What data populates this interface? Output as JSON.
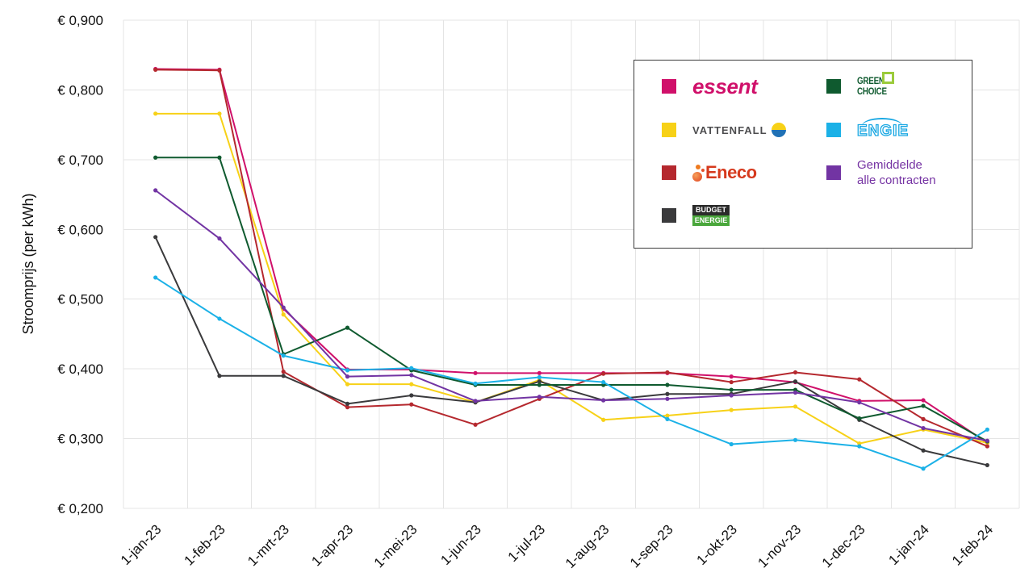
{
  "chart_data": {
    "type": "line",
    "ylabel": "Stroomprijs (per kWh)",
    "categories": [
      "1-jan-23",
      "1-feb-23",
      "1-mrt-23",
      "1-apr-23",
      "1-mei-23",
      "1-jun-23",
      "1-jul-23",
      "1-aug-23",
      "1-sep-23",
      "1-okt-23",
      "1-nov-23",
      "1-dec-23",
      "1-jan-24",
      "1-feb-24"
    ],
    "ylim": [
      0.2,
      0.9
    ],
    "yticks": [
      0.9,
      0.8,
      0.7,
      0.6,
      0.5,
      0.4,
      0.3,
      0.2
    ],
    "ytick_labels": [
      "€ 0,900",
      "€ 0,800",
      "€ 0,700",
      "€ 0,600",
      "€ 0,500",
      "€ 0,400",
      "€ 0,300",
      "€ 0,200"
    ],
    "grid": true,
    "legend_position": "top-right",
    "series": [
      {
        "name": "essent",
        "color": "#d0106a",
        "values": [
          0.83,
          0.829,
          0.486,
          0.399,
          0.399,
          0.394,
          0.394,
          0.394,
          0.394,
          0.389,
          0.381,
          0.354,
          0.355,
          0.294
        ]
      },
      {
        "name": "VATTENFALL",
        "color": "#f7d117",
        "values": [
          0.766,
          0.766,
          0.478,
          0.378,
          0.378,
          0.352,
          0.384,
          0.327,
          0.333,
          0.341,
          0.346,
          0.293,
          0.313,
          0.294
        ]
      },
      {
        "name": "Eneco",
        "color": "#b5282e",
        "values": [
          0.829,
          0.828,
          0.396,
          0.345,
          0.349,
          0.32,
          0.357,
          0.393,
          0.395,
          0.381,
          0.395,
          0.385,
          0.328,
          0.289
        ]
      },
      {
        "name": "BUDGET ENERGIE",
        "color": "#3a3a3c",
        "values": [
          0.589,
          0.39,
          0.39,
          0.35,
          0.362,
          0.352,
          0.382,
          0.355,
          0.364,
          0.364,
          0.382,
          0.327,
          0.283,
          0.262
        ]
      },
      {
        "name": "GREEN CHOICE",
        "color": "#0f5a2f",
        "values": [
          0.703,
          0.703,
          0.421,
          0.459,
          0.398,
          0.377,
          0.377,
          0.377,
          0.377,
          0.37,
          0.37,
          0.329,
          0.347,
          0.296
        ]
      },
      {
        "name": "ENGIE",
        "color": "#1bb1e7",
        "values": [
          0.531,
          0.472,
          0.419,
          0.398,
          0.401,
          0.379,
          0.388,
          0.381,
          0.328,
          0.292,
          0.298,
          0.289,
          0.257,
          0.313
        ]
      },
      {
        "name": "Gemiddelde alle contracten",
        "color": "#7234a3",
        "values": [
          0.656,
          0.587,
          0.488,
          0.389,
          0.391,
          0.354,
          0.36,
          0.355,
          0.357,
          0.362,
          0.366,
          0.352,
          0.315,
          0.297
        ]
      }
    ]
  }
}
